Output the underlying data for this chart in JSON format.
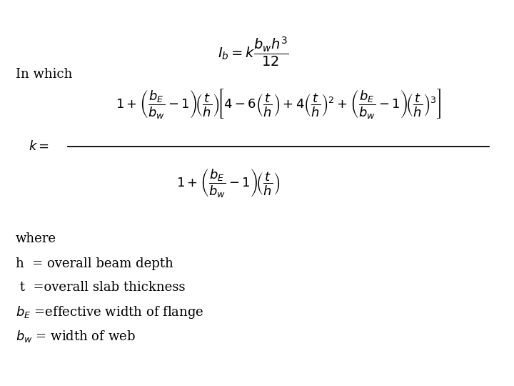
{
  "background_color": "#ffffff",
  "formula1": "$I_b = k\\dfrac{b_w h^3}{12}$",
  "in_which": "In which",
  "where_text": "where",
  "def1": "h  = overall beam depth",
  "def2": " t  =overall slab thickness",
  "def3": "$b_E$ =effective width of flange",
  "def4": "$b_w$ = width of web",
  "fontsize_formula1": 14,
  "fontsize_k_eq": 13,
  "fontsize_text": 13,
  "fontsize_def": 13
}
